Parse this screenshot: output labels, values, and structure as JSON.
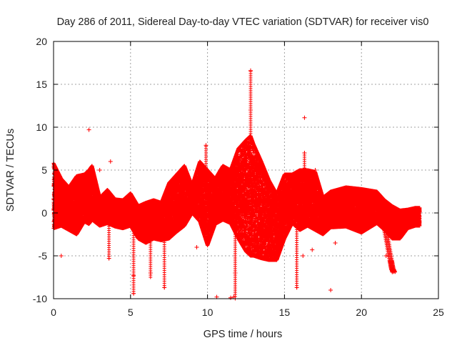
{
  "chart_data": {
    "type": "scatter",
    "title": "Day 286 of 2011, Sidereal Day-to-day VTEC variation (SDTVAR) for receiver vis0",
    "xlabel": "GPS time / hours",
    "ylabel": "SDTVAR / TECUs",
    "xlim": [
      0,
      25
    ],
    "ylim": [
      -10,
      20
    ],
    "xticks": [
      0,
      5,
      10,
      15,
      20,
      25
    ],
    "yticks": [
      -10,
      -5,
      0,
      5,
      10,
      15,
      20
    ],
    "xtick_labels": [
      "0",
      "5",
      "10",
      "15",
      "20",
      "25"
    ],
    "ytick_labels": [
      "-10",
      "-5",
      "0",
      "5",
      "10",
      "15",
      "20"
    ],
    "grid": true,
    "marker": "+",
    "color": "#ff0000",
    "series": [
      {
        "name": "SDTVAR",
        "envelope": {
          "x": [
            0.0,
            0.5,
            1.0,
            1.5,
            2.0,
            2.3,
            2.5,
            3.0,
            3.5,
            4.0,
            4.5,
            5.0,
            5.5,
            6.0,
            6.5,
            7.0,
            7.5,
            8.0,
            8.5,
            9.0,
            9.5,
            10.0,
            10.5,
            11.0,
            11.5,
            12.0,
            12.5,
            12.8,
            13.0,
            13.5,
            14.0,
            14.5,
            15.0,
            15.5,
            16.0,
            16.5,
            17.0,
            17.5,
            18.0,
            19.0,
            20.0,
            21.0,
            21.5,
            22.0,
            22.5,
            23.0,
            23.5,
            23.8
          ],
          "upper": [
            5.8,
            4.0,
            3.0,
            4.3,
            4.5,
            5.0,
            5.5,
            1.8,
            2.7,
            1.6,
            1.5,
            2.3,
            0.8,
            1.2,
            1.5,
            1.2,
            3.5,
            4.5,
            5.5,
            3.2,
            6.0,
            5.0,
            4.0,
            5.5,
            5.0,
            7.5,
            8.5,
            9.0,
            8.0,
            6.0,
            3.8,
            2.2,
            4.5,
            4.5,
            5.0,
            5.0,
            4.8,
            1.8,
            2.5,
            3.0,
            2.8,
            2.5,
            1.5,
            0.8,
            0.3,
            0.4,
            0.6,
            0.6
          ],
          "lower": [
            -1.8,
            -1.5,
            -2.0,
            -2.5,
            -1.0,
            -1.3,
            -0.8,
            -1.5,
            -1.2,
            -1.6,
            -1.8,
            -1.5,
            -3.0,
            -3.5,
            -3.0,
            -3.2,
            -3.0,
            -2.2,
            -1.5,
            0.0,
            -1.0,
            -3.8,
            -1.3,
            -0.8,
            -1.2,
            -3.0,
            -4.5,
            -5.0,
            -5.0,
            -5.3,
            -5.5,
            -5.5,
            -3.0,
            -1.2,
            -2.0,
            -1.5,
            -2.0,
            -2.5,
            -1.7,
            -1.6,
            -2.3,
            -1.2,
            -2.0,
            -3.0,
            -3.0,
            -1.8,
            -1.5,
            -1.5
          ]
        },
        "outliers": [
          {
            "x": 0.5,
            "y": -5.0
          },
          {
            "x": 2.3,
            "y": 9.7
          },
          {
            "x": 3.7,
            "y": 6.0
          },
          {
            "x": 3.0,
            "y": 5.0
          },
          {
            "x": 3.6,
            "y": -5.3
          },
          {
            "x": 5.2,
            "y": -7.3
          },
          {
            "x": 5.2,
            "y": -9.4
          },
          {
            "x": 6.3,
            "y": -7.0
          },
          {
            "x": 7.2,
            "y": -8.7
          },
          {
            "x": 9.3,
            "y": -4.0
          },
          {
            "x": 9.9,
            "y": 7.9
          },
          {
            "x": 10.6,
            "y": -9.8
          },
          {
            "x": 11.5,
            "y": -9.9
          },
          {
            "x": 11.7,
            "y": -9.8
          },
          {
            "x": 11.8,
            "y": -7.0
          },
          {
            "x": 12.8,
            "y": 16.6
          },
          {
            "x": 12.8,
            "y": 12.0
          },
          {
            "x": 15.8,
            "y": -8.7
          },
          {
            "x": 16.3,
            "y": 11.1
          },
          {
            "x": 16.3,
            "y": 7.0
          },
          {
            "x": 16.2,
            "y": -5.0
          },
          {
            "x": 16.8,
            "y": -4.3
          },
          {
            "x": 18.0,
            "y": -9.0
          },
          {
            "x": 18.3,
            "y": -3.5
          },
          {
            "x": 22.0,
            "y": -6.9
          },
          {
            "x": 21.6,
            "y": -5.0
          },
          {
            "x": 17.0,
            "y": 5.0
          }
        ],
        "spikes": [
          {
            "x": 12.8,
            "y0": 1.5,
            "y1": 16.6
          },
          {
            "x": 5.2,
            "y0": -1.5,
            "y1": -9.4
          },
          {
            "x": 7.2,
            "y0": -2.5,
            "y1": -8.7
          },
          {
            "x": 11.8,
            "y0": -1.0,
            "y1": -10.0
          },
          {
            "x": 15.8,
            "y0": -1.5,
            "y1": -8.7
          },
          {
            "x": 3.6,
            "y0": -1.0,
            "y1": -5.3
          },
          {
            "x": 6.3,
            "y0": -2.0,
            "y1": -7.5
          },
          {
            "x": 9.9,
            "y0": 2.0,
            "y1": 7.9
          },
          {
            "x": 16.3,
            "y0": 2.0,
            "y1": 7.0
          }
        ],
        "tail": {
          "x": [
            21.5,
            21.7,
            21.9,
            22.0,
            22.1
          ],
          "y": [
            -1.5,
            -3.5,
            -5.5,
            -6.5,
            -6.9
          ]
        }
      }
    ]
  }
}
